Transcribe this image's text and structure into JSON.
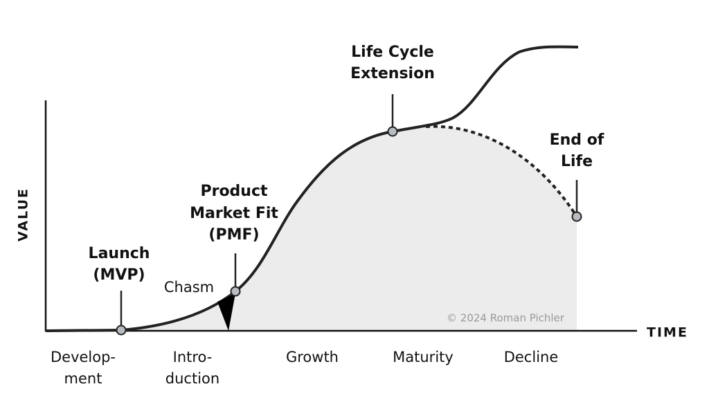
{
  "axes": {
    "y_label": "VALUE",
    "x_label": "TIME"
  },
  "milestones": [
    {
      "lines": [
        "Launch",
        "(MVP)"
      ]
    },
    {
      "lines": [
        "Product",
        "Market Fit",
        "(PMF)"
      ]
    },
    {
      "lines": [
        "Life Cycle",
        "Extension"
      ]
    },
    {
      "lines": [
        "End of",
        "Life"
      ]
    }
  ],
  "chasm": "Chasm",
  "stages": [
    {
      "lines": [
        "Develop-",
        "ment"
      ]
    },
    {
      "lines": [
        "Intro-",
        "duction"
      ]
    },
    {
      "lines": [
        "Growth"
      ]
    },
    {
      "lines": [
        "Maturity"
      ]
    },
    {
      "lines": [
        "Decline"
      ]
    }
  ],
  "copyright": "© 2024 Roman Pichler"
}
